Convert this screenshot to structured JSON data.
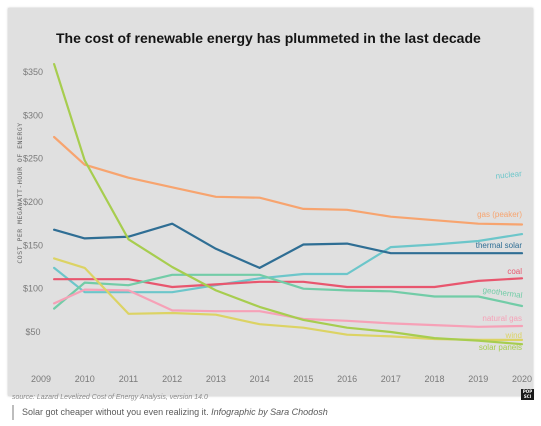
{
  "chart_data": {
    "type": "line",
    "title": "The cost of renewable energy has plummeted in the last decade",
    "ylabel": "COST PER MEGAWATT-HOUR OF ENERGY",
    "xlabel": "",
    "x": [
      2009.3,
      2010,
      2011,
      2012,
      2013,
      2014,
      2015,
      2016,
      2017,
      2018,
      2019,
      2020
    ],
    "x_ticks": [
      "2009",
      "2010",
      "2011",
      "2012",
      "2013",
      "2014",
      "2015",
      "2016",
      "2017",
      "2018",
      "2019",
      "2020"
    ],
    "y_ticks": [
      "$350",
      "$300",
      "$250",
      "$200",
      "$150",
      "$100",
      "$50"
    ],
    "y_tick_values": [
      350,
      300,
      250,
      200,
      150,
      100,
      50
    ],
    "xlim": [
      2009,
      2020
    ],
    "ylim": [
      0,
      365
    ],
    "grid": false,
    "legend": "inline-right",
    "series": [
      {
        "name": "gas (peaker)",
        "color": "#f7a46f",
        "values": [
          275,
          243,
          228,
          217,
          206,
          205,
          192,
          191,
          183,
          179,
          175,
          174
        ]
      },
      {
        "name": "nuclear",
        "color": "#6cc6ca",
        "values": [
          124,
          96,
          96,
          96,
          104,
          112,
          117,
          117,
          148,
          151,
          155,
          163
        ]
      },
      {
        "name": "thermal solar",
        "color": "#2f6e94",
        "values": [
          168,
          158,
          160,
          175,
          146,
          124,
          151,
          152,
          141,
          141,
          141,
          141
        ]
      },
      {
        "name": "coal",
        "color": "#e8566e",
        "values": [
          111,
          111,
          111,
          102,
          105,
          108,
          108,
          102,
          102,
          102,
          109,
          112
        ]
      },
      {
        "name": "geothermal",
        "color": "#72cca7",
        "values": [
          77,
          107,
          104,
          116,
          116,
          116,
          100,
          98,
          97,
          91,
          91,
          80
        ]
      },
      {
        "name": "natural gas",
        "color": "#f6a1b7",
        "values": [
          83,
          99,
          98,
          75,
          74,
          74,
          65,
          63,
          60,
          58,
          56,
          57
        ]
      },
      {
        "name": "wind",
        "color": "#dcd364",
        "values": [
          135,
          124,
          71,
          72,
          70,
          59,
          55,
          47,
          45,
          42,
          41,
          41
        ]
      },
      {
        "name": "solar panels",
        "color": "#a7cd4f",
        "values": [
          359,
          248,
          157,
          125,
          98,
          79,
          64,
          55,
          50,
          43,
          40,
          36
        ]
      }
    ]
  },
  "source": "source: Lazard Levelized Cost of Energy Analysis, version 14.0",
  "logo_text": "POP SCI",
  "caption": {
    "main": "Solar got cheaper without you even realizing it.",
    "credit": "Infographic by Sara Chodosh"
  }
}
